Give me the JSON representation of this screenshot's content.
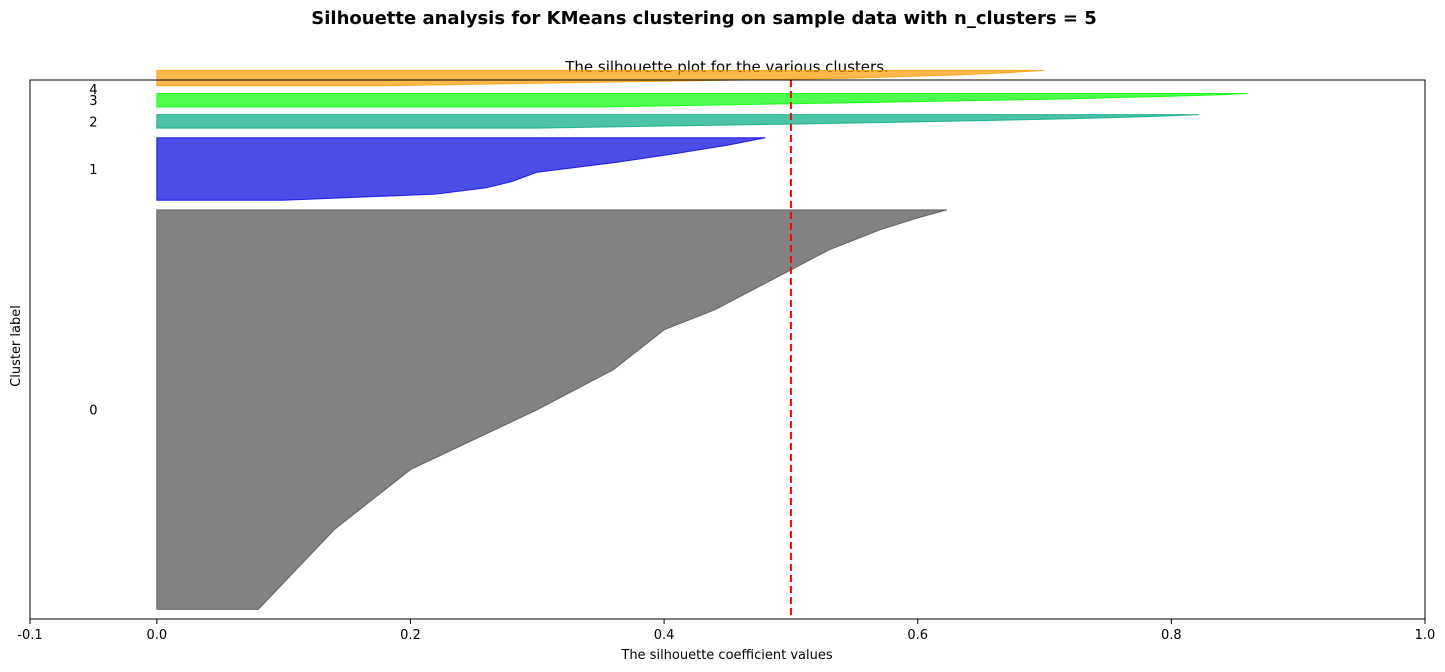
{
  "chart_data": {
    "type": "area",
    "suptitle": "Silhouette analysis for KMeans clustering on sample data with n_clusters = 5",
    "title": "The silhouette plot for the various clusters.",
    "xlabel": "The silhouette coefficient values",
    "ylabel": "Cluster label",
    "xlim": [
      -0.1,
      1.0
    ],
    "ylim": [
      0,
      560
    ],
    "xticks": [
      "-0.1",
      "0.0",
      "0.2",
      "0.4",
      "0.6",
      "0.8",
      "1.0"
    ],
    "xtick_values": [
      -0.1,
      0.0,
      0.2,
      0.4,
      0.6,
      0.8,
      1.0
    ],
    "grid": false,
    "average_silhouette": 0.5,
    "average_line_color": "#ff0000",
    "clusters": [
      {
        "label": "0",
        "color": "#4d4d4d",
        "y_lower": 10,
        "y_upper": 425,
        "profile": [
          [
            0.0,
            0.08
          ],
          [
            0.2,
            0.14
          ],
          [
            0.35,
            0.2
          ],
          [
            0.5,
            0.3
          ],
          [
            0.6,
            0.36
          ],
          [
            0.7,
            0.4
          ],
          [
            0.75,
            0.44
          ],
          [
            0.8,
            0.47
          ],
          [
            0.85,
            0.5
          ],
          [
            0.9,
            0.53
          ],
          [
            0.95,
            0.57
          ],
          [
            0.98,
            0.6
          ],
          [
            1.0,
            0.623
          ]
        ]
      },
      {
        "label": "1",
        "color": "#0000dd",
        "y_lower": 435,
        "y_upper": 500,
        "profile": [
          [
            0.0,
            0.1
          ],
          [
            0.1,
            0.22
          ],
          [
            0.2,
            0.26
          ],
          [
            0.3,
            0.28
          ],
          [
            0.45,
            0.3
          ],
          [
            0.6,
            0.36
          ],
          [
            0.75,
            0.41
          ],
          [
            0.88,
            0.45
          ],
          [
            1.0,
            0.48
          ]
        ]
      },
      {
        "label": "2",
        "color": "#00a980",
        "y_lower": 510,
        "y_upper": 524,
        "profile": [
          [
            0.0,
            0.3
          ],
          [
            0.3,
            0.5
          ],
          [
            0.5,
            0.62
          ],
          [
            0.7,
            0.72
          ],
          [
            0.85,
            0.78
          ],
          [
            1.0,
            0.822
          ]
        ]
      },
      {
        "label": "3",
        "color": "#00ff00",
        "y_lower": 532,
        "y_upper": 546,
        "profile": [
          [
            0.0,
            0.35
          ],
          [
            0.4,
            0.6
          ],
          [
            0.6,
            0.72
          ],
          [
            0.8,
            0.8
          ],
          [
            0.9,
            0.84
          ],
          [
            1.0,
            0.86
          ]
        ]
      },
      {
        "label": "4",
        "color": "#ff9a00",
        "y_lower": 554,
        "y_upper": 570,
        "profile": [
          [
            0.0,
            0.18
          ],
          [
            0.3,
            0.4
          ],
          [
            0.5,
            0.55
          ],
          [
            0.7,
            0.63
          ],
          [
            0.85,
            0.67
          ],
          [
            1.0,
            0.7
          ]
        ]
      }
    ]
  }
}
